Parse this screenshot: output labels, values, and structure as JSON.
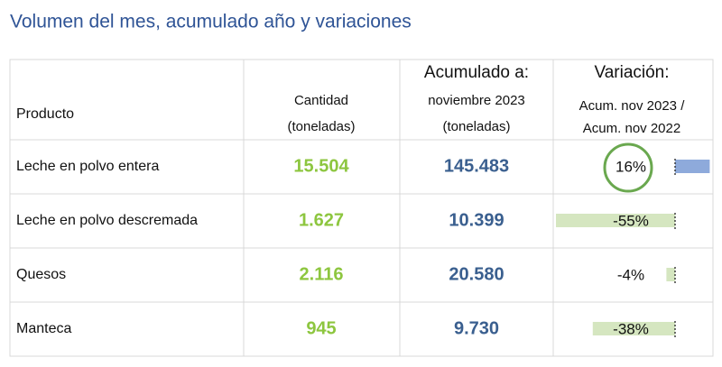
{
  "title": "Volumen del mes, acumulado año y variaciones",
  "table": {
    "headers": [
      [
        "Producto"
      ],
      [
        "Cantidad",
        "(toneladas)"
      ],
      [
        "Acumulado a:",
        "noviembre 2023",
        "(toneladas)"
      ],
      [
        "Variación:",
        "Acum. nov 2023 /",
        "Acum. nov 2022"
      ]
    ],
    "rows": [
      {
        "product": "Leche en polvo entera",
        "cantidad": "15.504",
        "acumulado": "145.483",
        "variacion": 16,
        "variacion_label": "16%"
      },
      {
        "product": "Leche en polvo descremada",
        "cantidad": "1.627",
        "acumulado": "10.399",
        "variacion": -55,
        "variacion_label": "-55%"
      },
      {
        "product": "Quesos",
        "cantidad": "2.116",
        "acumulado": "20.580",
        "variacion": -4,
        "variacion_label": "-4%"
      },
      {
        "product": "Manteca",
        "cantidad": "945",
        "acumulado": "9.730",
        "variacion": -38,
        "variacion_label": "-38%"
      }
    ]
  }
}
